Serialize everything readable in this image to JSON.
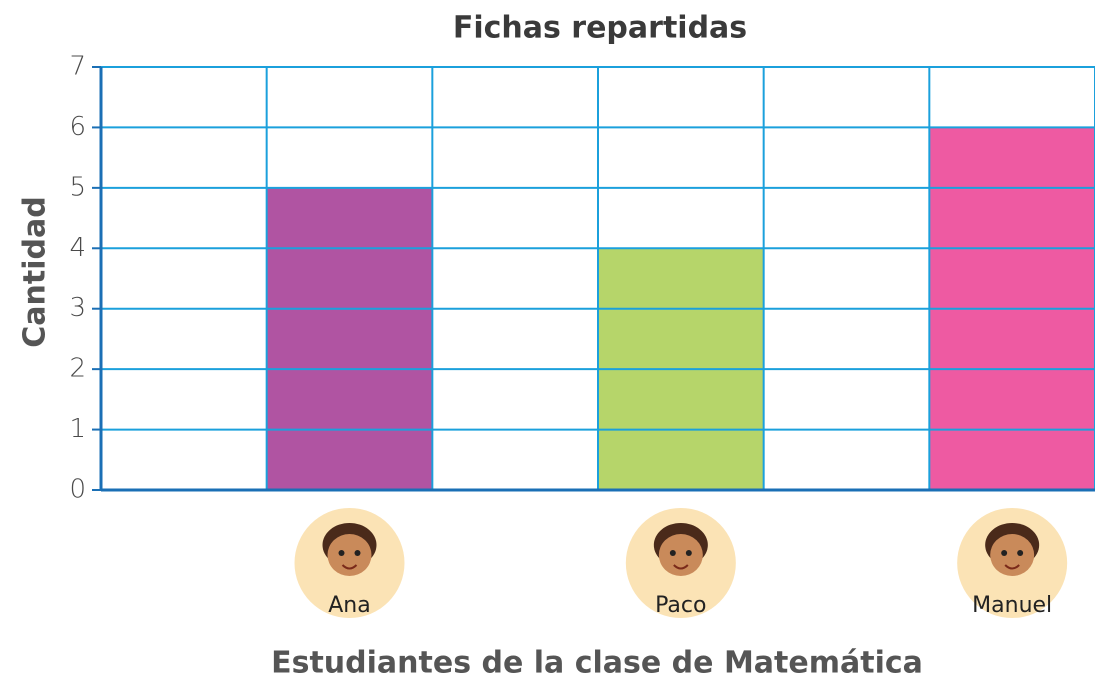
{
  "chart_data": {
    "type": "bar",
    "title": "Fichas repartidas",
    "x_label": "Estudiantes de la clase de Matemática",
    "y_label": "Cantidad",
    "categories": [
      null,
      "Ana",
      null,
      "Paco",
      null,
      "Manuel"
    ],
    "values": [
      null,
      5,
      null,
      4,
      null,
      6
    ],
    "colors": [
      null,
      "#b054a2",
      null,
      "#b6d56a",
      null,
      "#ee5aa2"
    ],
    "ylim": [
      0,
      7
    ],
    "yticks": [
      0,
      1,
      2,
      3,
      4,
      5,
      6,
      7
    ],
    "grid": true
  }
}
